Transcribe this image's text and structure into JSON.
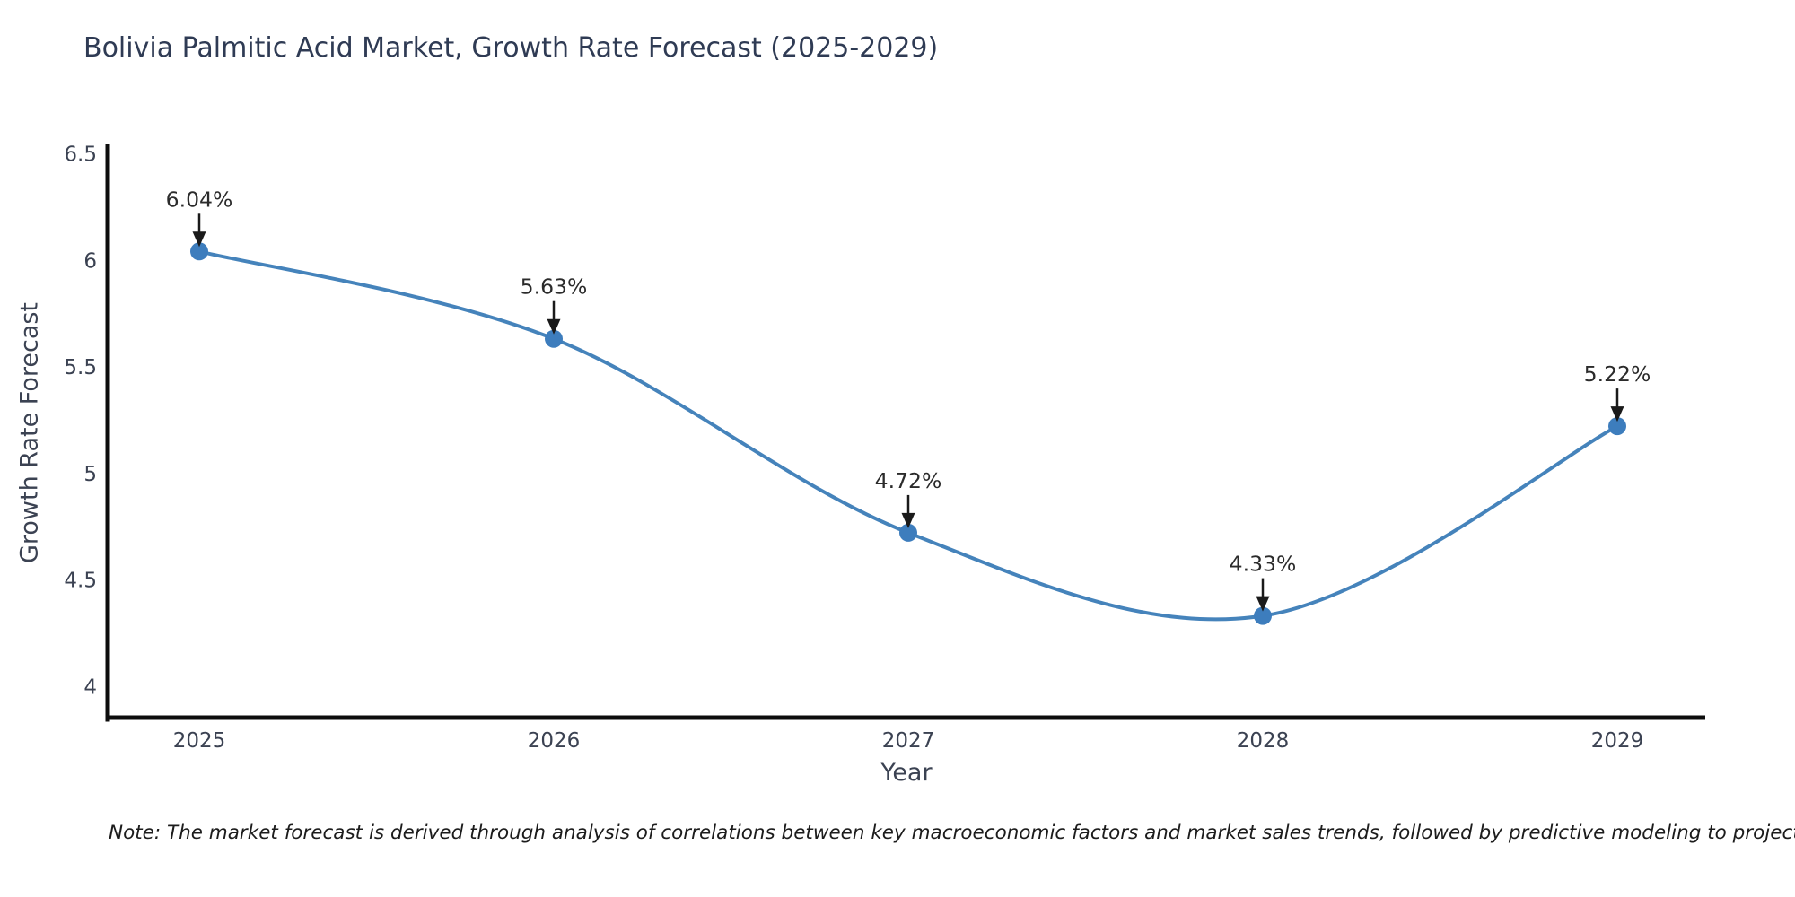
{
  "chart_data": {
    "type": "line",
    "title": "Bolivia Palmitic Acid Market, Growth Rate Forecast (2025-2029)",
    "xlabel": "Year",
    "ylabel": "Growth Rate Forecast",
    "categories": [
      "2025",
      "2026",
      "2027",
      "2028",
      "2029"
    ],
    "values": [
      6.04,
      5.63,
      4.72,
      4.33,
      5.22
    ],
    "point_labels": [
      "6.04%",
      "5.63%",
      "4.72%",
      "4.33%",
      "5.22%"
    ],
    "y_ticks": [
      6.5,
      6,
      5.5,
      5,
      4.5,
      4
    ],
    "ylim": [
      3.85,
      6.55
    ],
    "grid": false,
    "legend": "none",
    "line_shape": "spline",
    "line_color": "#4583bb",
    "marker_color": "#3d7dbd",
    "axis_line_color": "#0d0d0d",
    "tick_label_color": "#3b4252",
    "annotation_color": "#1a1a1a",
    "annotation_text_color": "#2b2b2b"
  },
  "note": "Note: The market forecast is derived through analysis of correlations between key macroeconomic factors and market sales trends, followed by predictive modeling to project future sales"
}
